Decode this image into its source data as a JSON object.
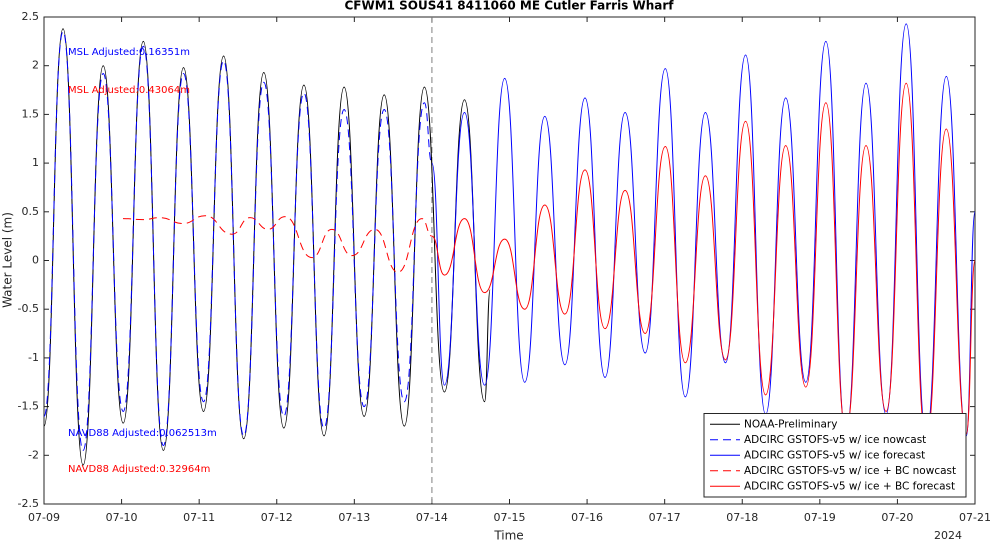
{
  "chart_data": {
    "type": "line",
    "title": "CFWM1 SOUS41 8411060 ME Cutler Farris Wharf",
    "xlabel": "Time",
    "ylabel": "Water Level (m)",
    "xlabel_year": "2024",
    "xlim": [
      0,
      12
    ],
    "ylim": [
      -2.5,
      2.5
    ],
    "xticks": [
      {
        "value": 0,
        "label": "07-09"
      },
      {
        "value": 1,
        "label": "07-10"
      },
      {
        "value": 2,
        "label": "07-11"
      },
      {
        "value": 3,
        "label": "07-12"
      },
      {
        "value": 4,
        "label": "07-13"
      },
      {
        "value": 5,
        "label": "07-14"
      },
      {
        "value": 6,
        "label": "07-15"
      },
      {
        "value": 7,
        "label": "07-16"
      },
      {
        "value": 8,
        "label": "07-17"
      },
      {
        "value": 9,
        "label": "07-18"
      },
      {
        "value": 10,
        "label": "07-19"
      },
      {
        "value": 11,
        "label": "07-20"
      },
      {
        "value": 12,
        "label": "07-21"
      }
    ],
    "yticks": [
      -2.5,
      -2,
      -1.5,
      -1,
      -0.5,
      0,
      0.5,
      1,
      1.5,
      2,
      2.5
    ],
    "forecast_start": 5,
    "legend": "lower right",
    "annotations": [
      {
        "text": "MSL Adjusted:0.16351m",
        "color": "#0000ff"
      },
      {
        "text": "MSL Adjusted:0.43064m",
        "color": "#ff0000"
      },
      {
        "text": "NAVD88 Adjusted:0.062513m",
        "color": "#0000ff"
      },
      {
        "text": "NAVD88 Adjusted:0.32964m",
        "color": "#ff0000"
      }
    ],
    "series": [
      {
        "name": "NOAA-Preliminary",
        "color": "#000000",
        "dashed": false,
        "x": [
          0,
          0.245,
          0.504,
          0.763,
          1.021,
          1.28,
          1.539,
          1.798,
          2.056,
          2.315,
          2.574,
          2.833,
          3.091,
          3.35,
          3.609,
          3.868,
          4.126,
          4.385,
          4.644,
          4.903,
          5.161,
          5.42,
          5.679,
          5.75
        ],
        "values": [
          -1.7,
          2.38,
          -2.1,
          2.0,
          -1.67,
          2.25,
          -1.95,
          1.98,
          -1.55,
          2.1,
          -1.83,
          1.93,
          -1.72,
          1.8,
          -1.8,
          1.78,
          -1.6,
          1.7,
          -1.7,
          1.78,
          -1.35,
          1.65,
          -1.45,
          -0.3
        ]
      },
      {
        "name": "ADCIRC GSTOFS-v5 w/ ice nowcast",
        "color": "#0000ff",
        "dashed": true,
        "x": [
          0,
          0.245,
          0.504,
          0.763,
          1.021,
          1.28,
          1.539,
          1.798,
          2.056,
          2.315,
          2.574,
          2.833,
          3.091,
          3.35,
          3.609,
          3.868,
          4.126,
          4.385,
          4.644,
          4.903,
          5.0
        ],
        "values": [
          -1.6,
          2.35,
          -1.95,
          1.92,
          -1.55,
          2.2,
          -1.9,
          1.92,
          -1.45,
          2.05,
          -1.8,
          1.83,
          -1.6,
          1.72,
          -1.72,
          1.55,
          -1.5,
          1.55,
          -1.45,
          1.62,
          1.0
        ]
      },
      {
        "name": "ADCIRC GSTOFS-v5 w/ ice forecast",
        "color": "#0000ff",
        "dashed": false,
        "x": [
          5.0,
          5.161,
          5.42,
          5.679,
          5.938,
          6.196,
          6.455,
          6.714,
          6.973,
          7.231,
          7.49,
          7.749,
          8.008,
          8.266,
          8.525,
          8.784,
          9.043,
          9.301,
          9.56,
          9.819,
          10.078,
          10.336,
          10.595,
          10.854,
          11.113,
          11.371,
          11.63,
          11.889,
          12
        ],
        "values": [
          1.0,
          -1.28,
          1.52,
          -1.28,
          1.87,
          -1.25,
          1.48,
          -1.07,
          1.67,
          -1.2,
          1.52,
          -0.95,
          1.97,
          -1.4,
          1.52,
          -1.05,
          2.11,
          -1.58,
          1.67,
          -1.25,
          2.25,
          -1.78,
          1.82,
          -1.58,
          2.43,
          -1.8,
          1.89,
          -1.8,
          0.5
        ]
      },
      {
        "name": "ADCIRC GSTOFS-v5 w/ ice + BC nowcast",
        "color": "#ff0000",
        "dashed": true,
        "x": [
          1.018,
          1.276,
          1.495,
          1.791,
          2.075,
          2.423,
          2.655,
          2.887,
          3.106,
          3.454,
          3.711,
          3.969,
          4.265,
          4.562,
          4.871,
          5.0
        ],
        "values": [
          0.43,
          0.42,
          0.44,
          0.38,
          0.46,
          0.27,
          0.44,
          0.32,
          0.45,
          0.03,
          0.32,
          0.05,
          0.32,
          -0.12,
          0.43,
          0.25
        ]
      },
      {
        "name": "ADCIRC GSTOFS-v5 w/ ice + BC forecast",
        "color": "#ff0000",
        "dashed": false,
        "x": [
          5.0,
          5.161,
          5.42,
          5.679,
          5.938,
          6.196,
          6.455,
          6.714,
          6.973,
          7.231,
          7.49,
          7.749,
          8.008,
          8.266,
          8.525,
          8.784,
          9.043,
          9.301,
          9.56,
          9.819,
          10.078,
          10.336,
          10.595,
          10.854,
          11.113,
          11.371,
          11.63,
          11.889,
          12
        ],
        "values": [
          0.25,
          -0.15,
          0.43,
          -0.33,
          0.22,
          -0.5,
          0.57,
          -0.55,
          0.93,
          -0.7,
          0.72,
          -0.75,
          1.17,
          -1.05,
          0.87,
          -1.02,
          1.43,
          -1.38,
          1.18,
          -1.3,
          1.62,
          -1.75,
          1.18,
          -1.55,
          1.82,
          -1.85,
          1.35,
          -1.78,
          0.0
        ]
      }
    ]
  }
}
